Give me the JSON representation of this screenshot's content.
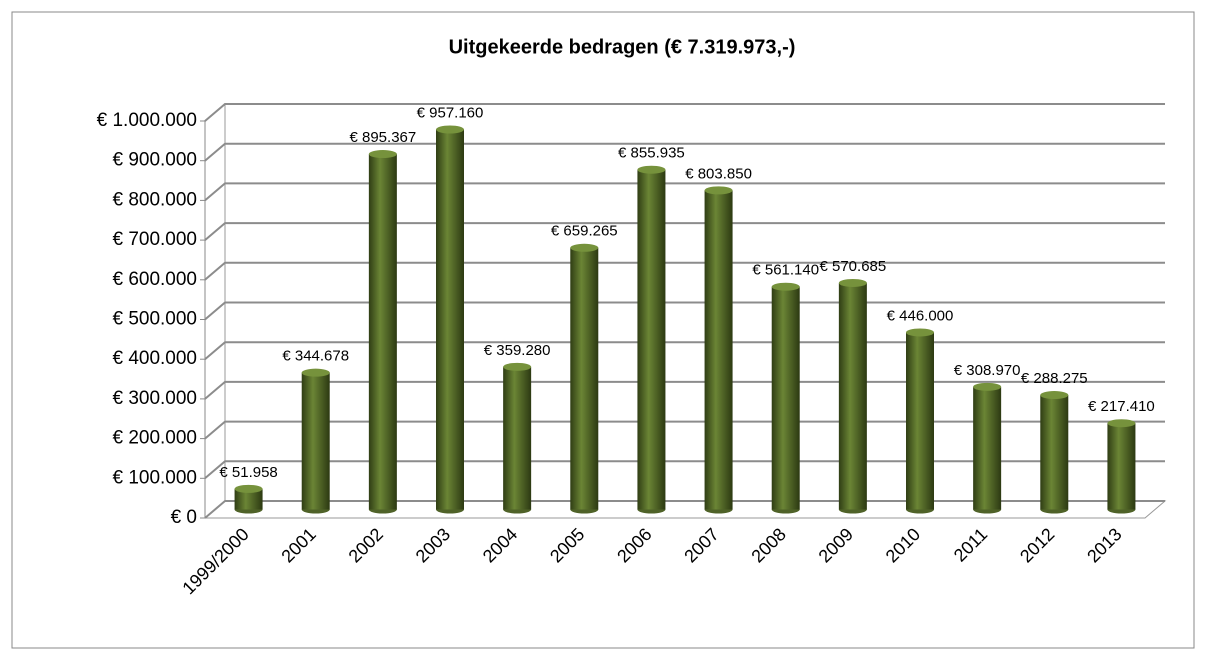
{
  "chart_data": {
    "type": "bar3d",
    "title": "Uitgekeerde bedragen (€ 7.319.973,-)",
    "categories": [
      "1999/2000",
      "2001",
      "2002",
      "2003",
      "2004",
      "2005",
      "2006",
      "2007",
      "2008",
      "2009",
      "2010",
      "2011",
      "2012",
      "2013"
    ],
    "values": [
      51958,
      344678,
      895367,
      957160,
      359280,
      659265,
      855935,
      803850,
      561140,
      570685,
      446000,
      308970,
      288275,
      217410
    ],
    "value_labels": [
      "€ 51.958",
      "€ 344.678",
      "€ 895.367",
      "€ 957.160",
      "€ 359.280",
      "€ 659.265",
      "€ 855.935",
      "€ 803.850",
      "€ 561.140",
      "€ 570.685",
      "€ 446.000",
      "€ 308.970",
      "€ 288.275",
      "€ 217.410"
    ],
    "color": "#4f6228",
    "ylim": [
      0,
      1000000
    ],
    "yticks": [
      {
        "value": 0,
        "label": "€ 0"
      },
      {
        "value": 100000,
        "label": "€ 100.000"
      },
      {
        "value": 200000,
        "label": "€ 200.000"
      },
      {
        "value": 300000,
        "label": "€ 300.000"
      },
      {
        "value": 400000,
        "label": "€ 400.000"
      },
      {
        "value": 500000,
        "label": "€ 500.000"
      },
      {
        "value": 600000,
        "label": "€ 600.000"
      },
      {
        "value": 700000,
        "label": "€ 700.000"
      },
      {
        "value": 800000,
        "label": "€ 800.000"
      },
      {
        "value": 900000,
        "label": "€ 900.000"
      },
      {
        "value": 1000000,
        "label": "€ 1.000.000"
      }
    ],
    "grid": true
  }
}
